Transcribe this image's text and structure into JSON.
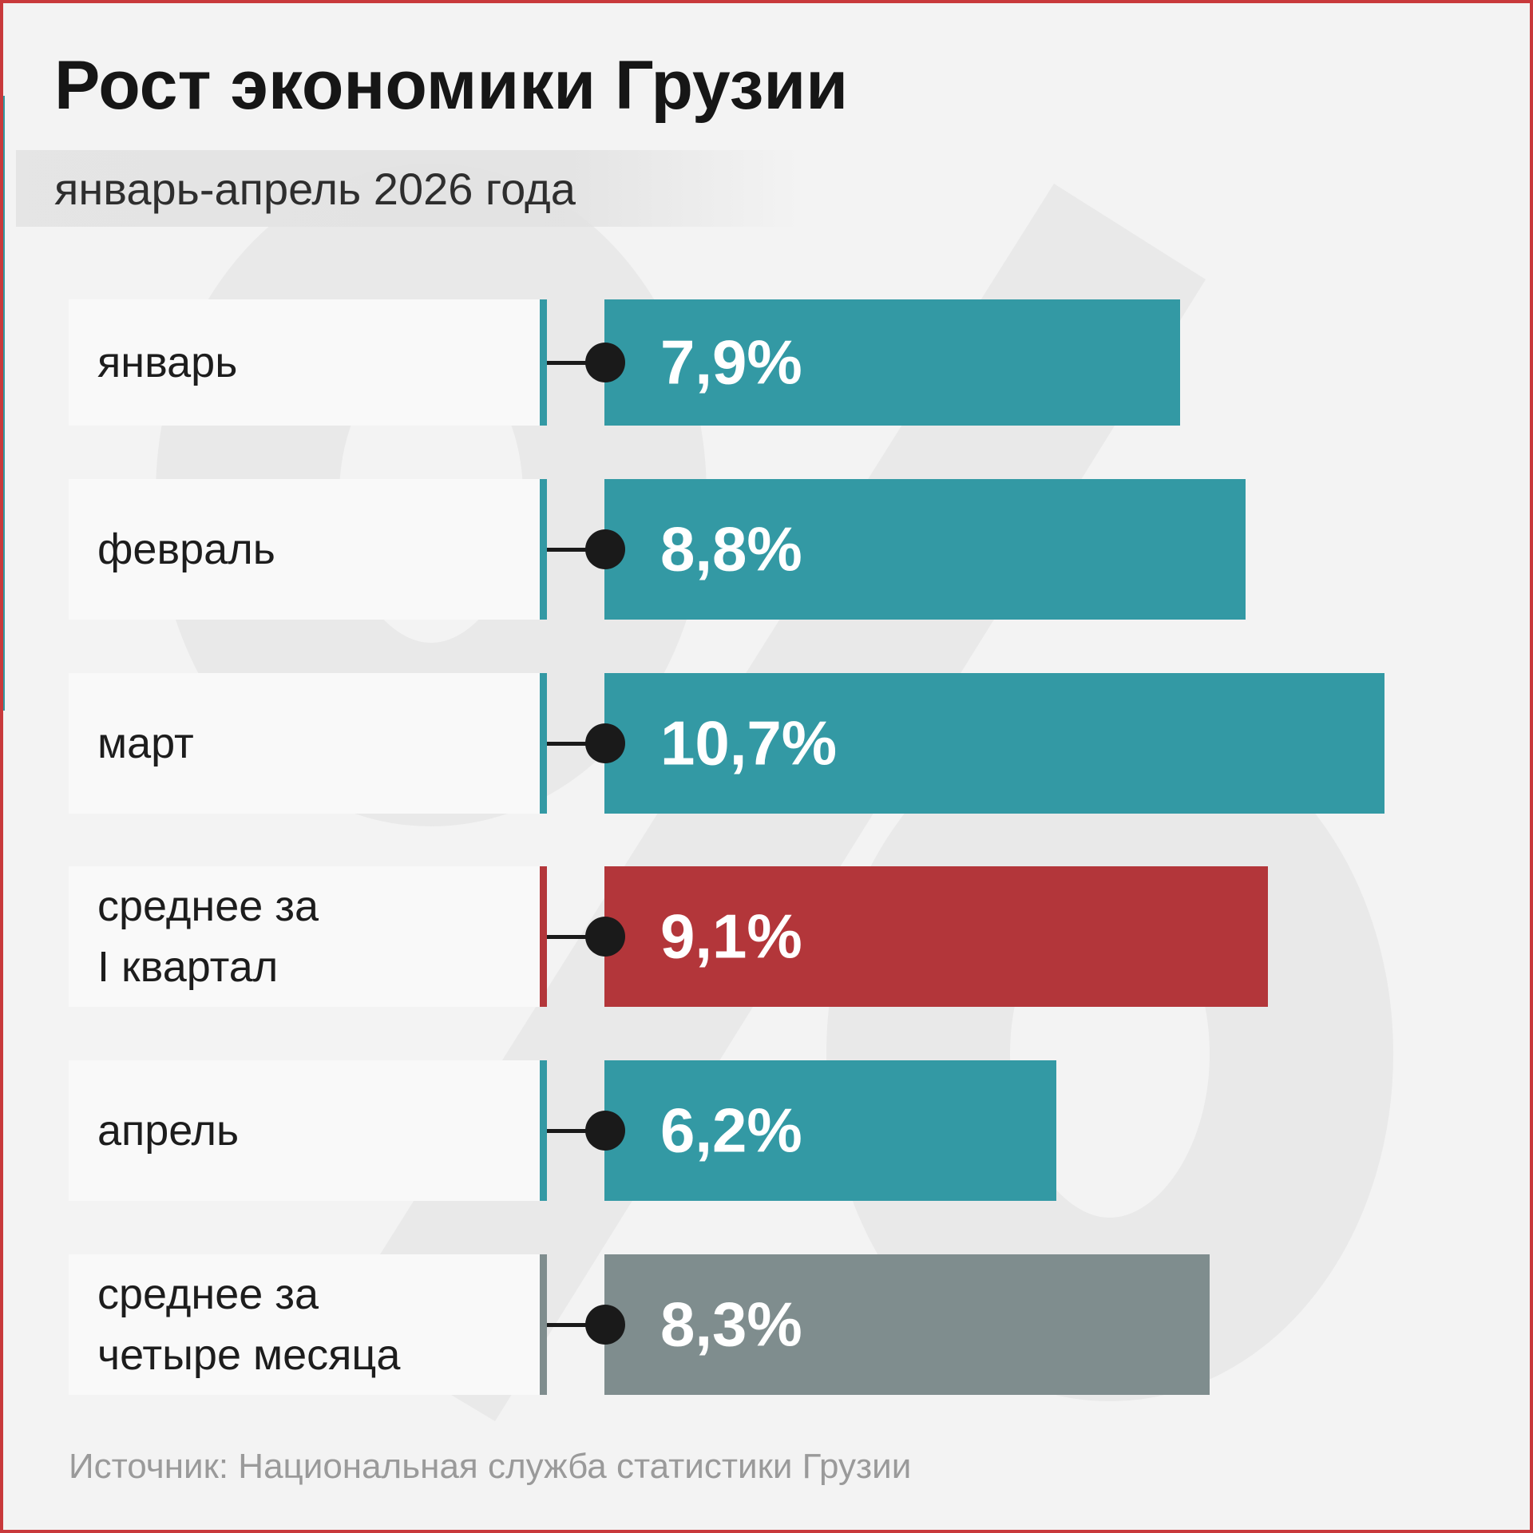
{
  "title": "Рост экономики Грузии",
  "subtitle": "январь-апрель 2026 года",
  "source": "Источник: Национальная служба статистики Грузии",
  "colors": {
    "teal": "#3399a4",
    "red": "#b3363a",
    "gray": "#7f8d8e",
    "frame": "#c8393b"
  },
  "watermark_icon": "percent-sign",
  "chart_data": {
    "type": "bar",
    "orientation": "horizontal",
    "title": "Рост экономики Грузии",
    "subtitle": "январь-апрель 2026 года",
    "unit": "%",
    "categories": [
      "январь",
      "февраль",
      "март",
      "среднее за I квартал",
      "апрель",
      "среднее за четыре месяца"
    ],
    "values": [
      7.9,
      8.8,
      10.7,
      9.1,
      6.2,
      8.3
    ],
    "value_labels": [
      "7,9%",
      "8,8%",
      "10,7%",
      "9,1%",
      "6,2%",
      "8,3%"
    ],
    "bar_colors": [
      "#3399a4",
      "#3399a4",
      "#3399a4",
      "#b3363a",
      "#3399a4",
      "#7f8d8e"
    ],
    "grid": false,
    "legend": "none"
  },
  "rows": [
    {
      "lines": [
        "январь"
      ],
      "value_label": "7,9%"
    },
    {
      "lines": [
        "февраль"
      ],
      "value_label": "8,8%"
    },
    {
      "lines": [
        "март"
      ],
      "value_label": "10,7%"
    },
    {
      "lines": [
        "среднее за",
        "I квартал"
      ],
      "value_label": "9,1%"
    },
    {
      "lines": [
        "апрель"
      ],
      "value_label": "6,2%"
    },
    {
      "lines": [
        "среднее за",
        "четыре месяца"
      ],
      "value_label": "8,3%"
    }
  ]
}
